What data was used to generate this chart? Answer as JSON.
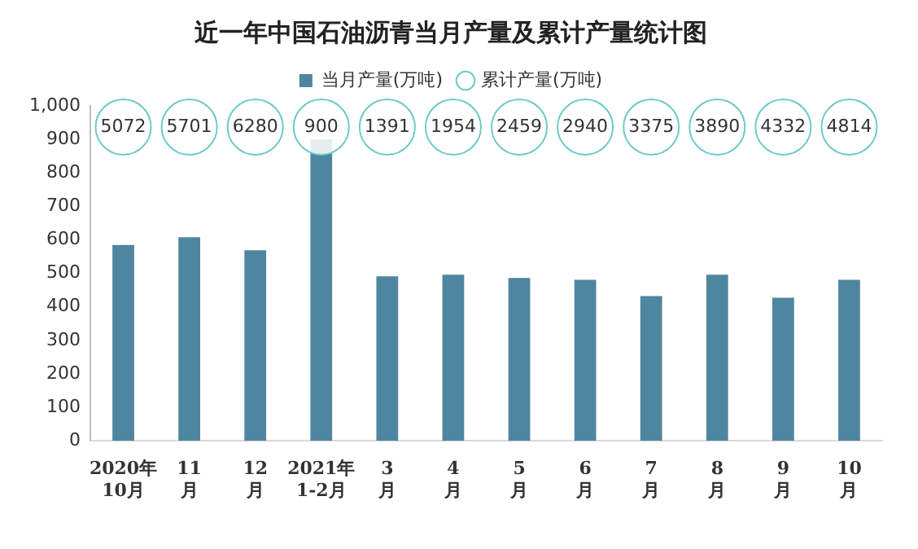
{
  "chart_data": {
    "type": "bar",
    "title": "近一年中国石油沥青当月产量及累计产量统计图",
    "categories": [
      "2020年\n10月",
      "11\n月",
      "12\n月",
      "2021年\n1-2月",
      "3\n月",
      "4\n月",
      "5\n月",
      "6\n月",
      "7\n月",
      "8\n月",
      "9\n月",
      "10\n月"
    ],
    "series": [
      {
        "name": "当月产量(万吨)",
        "color": "#4f869f",
        "values": [
          585,
          608,
          569,
          900,
          491,
          496,
          486,
          481,
          432,
          496,
          427,
          481
        ]
      },
      {
        "name": "累计产量(万吨)",
        "color": "#6fcaca",
        "type": "scatter",
        "marker": "circle",
        "values": [
          null,
          null,
          null,
          null,
          null,
          null,
          null,
          null,
          null,
          null,
          null,
          null
        ]
      }
    ],
    "annotations": [
      "5072",
      "5701",
      "6280",
      "900",
      "1391",
      "1954",
      "2459",
      "2940",
      "3375",
      "3890",
      "4332",
      "4814"
    ],
    "ylim": [
      0,
      1000
    ],
    "yticks": [
      0,
      100,
      200,
      300,
      400,
      500,
      600,
      700,
      800,
      900,
      {
        "value": 1000,
        "label": "1,000"
      }
    ],
    "legend": "top"
  }
}
